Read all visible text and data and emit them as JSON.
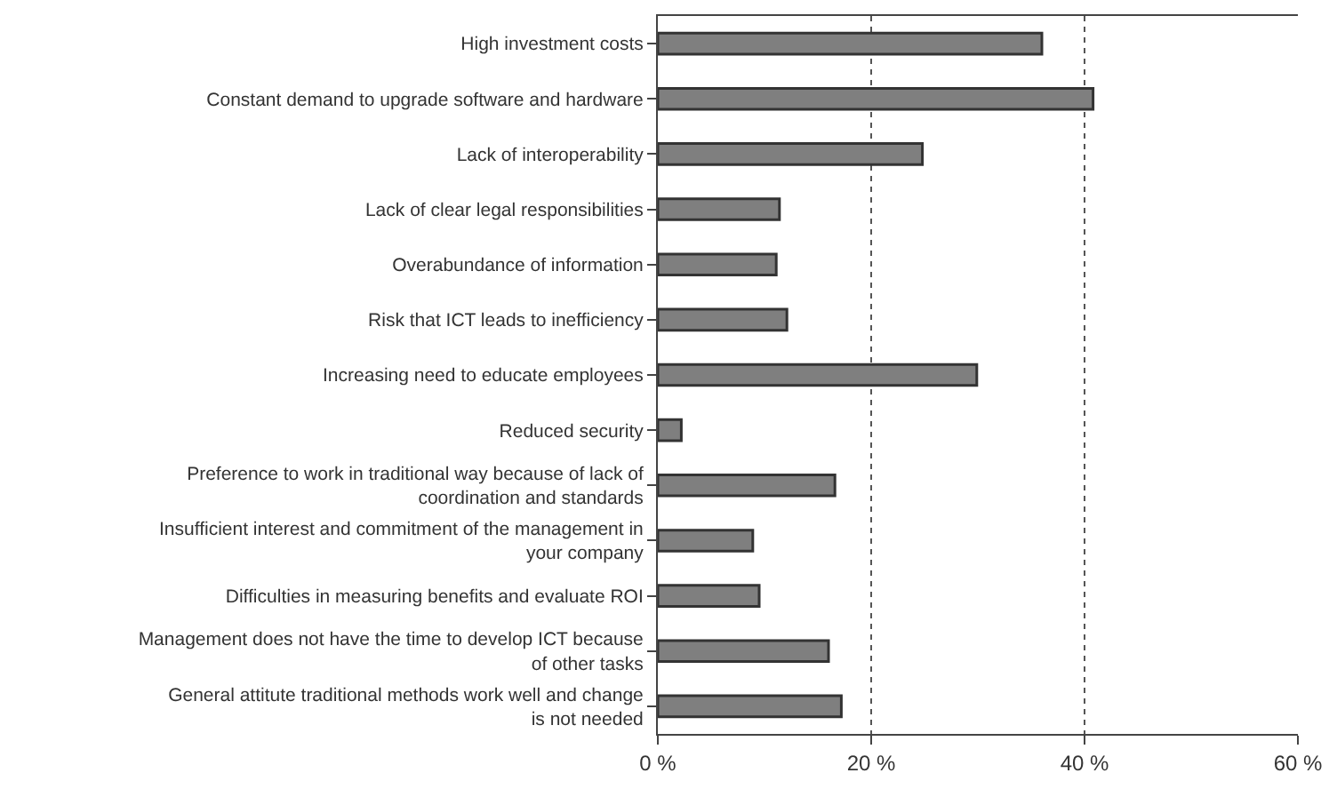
{
  "chart_data": {
    "type": "bar",
    "orientation": "horizontal",
    "categories": [
      "High investment costs",
      "Constant demand to upgrade software and hardware",
      "Lack of interoperability",
      "Lack of clear legal responsibilities",
      "Overabundance of information",
      "Risk that ICT leads to inefficiency",
      "Increasing need to educate employees",
      "Reduced security",
      "Preference to work in traditional way because of lack of coordination and standards",
      "Insufficient interest and commitment of the management in your company",
      "Difficulties in measuring benefits and evaluate ROI",
      "Management does not have the time to develop ICT because of other tasks",
      "General attitute traditional methods work well and change is not needed"
    ],
    "values": [
      36,
      40.8,
      24.8,
      11.4,
      11.1,
      12.1,
      29.9,
      2.2,
      16.6,
      8.9,
      9.5,
      16,
      17.2
    ],
    "color": "#7f7f7f",
    "xlim": [
      0,
      60
    ],
    "xticks": [
      {
        "value": 0,
        "label": "0 %"
      },
      {
        "value": 20,
        "label": "20 %"
      },
      {
        "value": 40,
        "label": "40 %"
      },
      {
        "value": 60,
        "label": "60 %"
      }
    ],
    "grid": "x",
    "line_style": "dotted",
    "legend": false
  }
}
